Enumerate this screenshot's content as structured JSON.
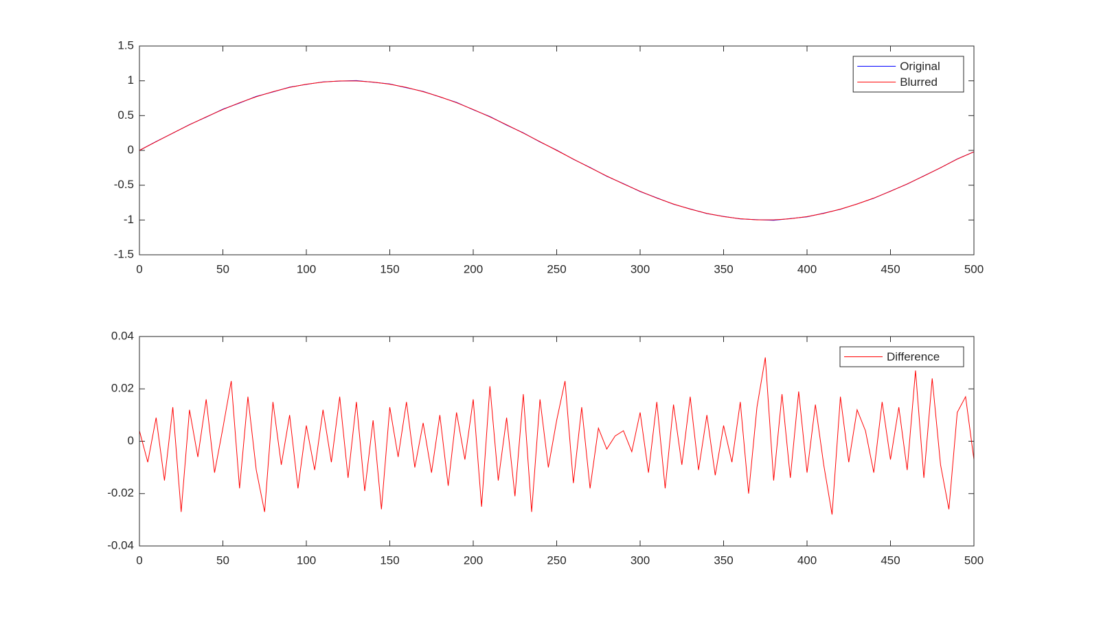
{
  "chart_data": [
    {
      "type": "line",
      "x": [
        0,
        10,
        20,
        30,
        40,
        50,
        60,
        70,
        80,
        90,
        100,
        110,
        120,
        130,
        140,
        150,
        160,
        170,
        180,
        190,
        200,
        210,
        220,
        230,
        240,
        250,
        260,
        270,
        280,
        290,
        300,
        310,
        320,
        330,
        340,
        350,
        360,
        370,
        380,
        390,
        400,
        410,
        420,
        430,
        440,
        450,
        460,
        470,
        480,
        490,
        500
      ],
      "series": [
        {
          "name": "Original",
          "color": "#0000ff",
          "values": [
            0,
            0.128,
            0.247,
            0.371,
            0.478,
            0.592,
            0.681,
            0.776,
            0.84,
            0.909,
            0.948,
            0.985,
            0.996,
            1.003,
            0.98,
            0.955,
            0.9,
            0.848,
            0.768,
            0.69,
            0.584,
            0.486,
            0.364,
            0.252,
            0.121,
            0.004,
            -0.128,
            -0.245,
            -0.372,
            -0.478,
            -0.591,
            -0.682,
            -0.774,
            -0.841,
            -0.908,
            -0.949,
            -0.984,
            -0.996,
            -1.004,
            -0.98,
            -0.955,
            -0.902,
            -0.847,
            -0.769,
            -0.688,
            -0.585,
            -0.484,
            -0.366,
            -0.25,
            -0.123,
            -0.02
          ]
        },
        {
          "name": "Blurred",
          "color": "#ff0000",
          "values": [
            0,
            0.125,
            0.249,
            0.368,
            0.482,
            0.588,
            0.685,
            0.771,
            0.844,
            0.905,
            0.951,
            0.982,
            0.998,
            0.998,
            0.982,
            0.951,
            0.905,
            0.844,
            0.771,
            0.685,
            0.588,
            0.482,
            0.368,
            0.249,
            0.125,
            0,
            -0.125,
            -0.249,
            -0.368,
            -0.482,
            -0.588,
            -0.685,
            -0.771,
            -0.844,
            -0.905,
            -0.951,
            -0.982,
            -0.998,
            -0.998,
            -0.982,
            -0.951,
            -0.905,
            -0.844,
            -0.771,
            -0.685,
            -0.588,
            -0.482,
            -0.368,
            -0.249,
            -0.125,
            -0.02
          ]
        }
      ],
      "xlim": [
        0,
        500
      ],
      "xticks": [
        0,
        50,
        100,
        150,
        200,
        250,
        300,
        350,
        400,
        450,
        500
      ],
      "ylim": [
        -1.5,
        1.5
      ],
      "yticks": [
        -1.5,
        -1,
        -0.5,
        0,
        0.5,
        1,
        1.5
      ],
      "legend": "northeast"
    },
    {
      "type": "line",
      "x": [
        0,
        5,
        10,
        15,
        20,
        25,
        30,
        35,
        40,
        45,
        50,
        55,
        60,
        65,
        70,
        75,
        80,
        85,
        90,
        95,
        100,
        105,
        110,
        115,
        120,
        125,
        130,
        135,
        140,
        145,
        150,
        155,
        160,
        165,
        170,
        175,
        180,
        185,
        190,
        195,
        200,
        205,
        210,
        215,
        220,
        225,
        230,
        235,
        240,
        245,
        250,
        255,
        260,
        265,
        270,
        275,
        280,
        285,
        290,
        295,
        300,
        305,
        310,
        315,
        320,
        325,
        330,
        335,
        340,
        345,
        350,
        355,
        360,
        365,
        370,
        375,
        380,
        385,
        390,
        395,
        400,
        405,
        410,
        415,
        420,
        425,
        430,
        435,
        440,
        445,
        450,
        455,
        460,
        465,
        470,
        475,
        480,
        485,
        490,
        495,
        500
      ],
      "series": [
        {
          "name": "Difference",
          "color": "#ff0000",
          "values": [
            0.004,
            -0.008,
            0.009,
            -0.015,
            0.013,
            -0.027,
            0.012,
            -0.006,
            0.016,
            -0.012,
            0.005,
            0.023,
            -0.018,
            0.017,
            -0.011,
            -0.027,
            0.015,
            -0.009,
            0.01,
            -0.018,
            0.006,
            -0.011,
            0.012,
            -0.008,
            0.017,
            -0.014,
            0.015,
            -0.019,
            0.008,
            -0.026,
            0.013,
            -0.006,
            0.015,
            -0.01,
            0.007,
            -0.012,
            0.01,
            -0.017,
            0.011,
            -0.007,
            0.016,
            -0.025,
            0.021,
            -0.015,
            0.009,
            -0.021,
            0.018,
            -0.027,
            0.016,
            -0.01,
            0.008,
            0.023,
            -0.016,
            0.013,
            -0.018,
            0.005,
            -0.003,
            0.002,
            0.004,
            -0.004,
            0.011,
            -0.012,
            0.015,
            -0.018,
            0.014,
            -0.009,
            0.017,
            -0.011,
            0.01,
            -0.013,
            0.006,
            -0.008,
            0.015,
            -0.02,
            0.013,
            0.032,
            -0.015,
            0.018,
            -0.014,
            0.019,
            -0.012,
            0.014,
            -0.009,
            -0.028,
            0.017,
            -0.008,
            0.012,
            0.004,
            -0.012,
            0.015,
            -0.007,
            0.013,
            -0.011,
            0.027,
            -0.014,
            0.024,
            -0.009,
            -0.026,
            0.011,
            0.017,
            -0.007
          ]
        }
      ],
      "xlim": [
        0,
        500
      ],
      "xticks": [
        0,
        50,
        100,
        150,
        200,
        250,
        300,
        350,
        400,
        450,
        500
      ],
      "ylim": [
        -0.04,
        0.04
      ],
      "yticks": [
        -0.04,
        -0.02,
        0,
        0.02,
        0.04
      ],
      "legend": "northeast"
    }
  ]
}
